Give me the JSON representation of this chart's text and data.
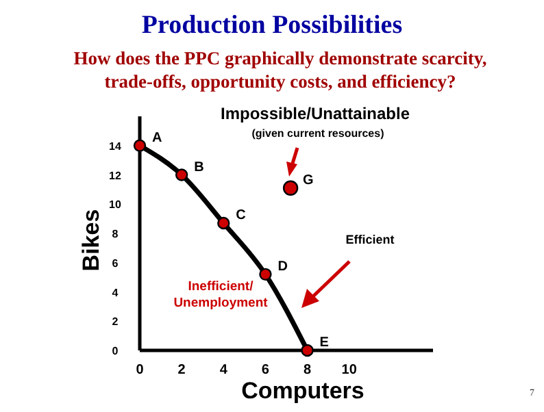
{
  "chart_data": {
    "type": "line",
    "title": "Production Possibilities",
    "subtitle": "How does the PPC graphically demonstrate scarcity, trade-offs, opportunity costs, and efficiency?",
    "xlabel": "Computers",
    "ylabel": "Bikes",
    "xlim": [
      0,
      14
    ],
    "ylim": [
      0,
      16
    ],
    "xticks": [
      0,
      2,
      4,
      6,
      8,
      10
    ],
    "yticks": [
      0,
      2,
      4,
      6,
      8,
      10,
      12,
      14
    ],
    "grid": false,
    "series": [
      {
        "color": "#000000",
        "marker": "none",
        "x": [
          0,
          2,
          4,
          6,
          8
        ],
        "values": [
          14,
          12,
          8.7,
          5.2,
          0
        ]
      },
      {
        "type": "scatter",
        "color": "#cc0000",
        "marker": "circle",
        "x": [
          0,
          2,
          4,
          6,
          8,
          7.2
        ],
        "values": [
          14,
          12,
          8.7,
          5.2,
          0,
          11.1
        ]
      }
    ],
    "annotations": [
      {
        "text": "A",
        "x": 0,
        "y": 14
      },
      {
        "text": "B",
        "x": 2,
        "y": 12
      },
      {
        "text": "C",
        "x": 4,
        "y": 8.7
      },
      {
        "text": "D",
        "x": 6,
        "y": 5.2
      },
      {
        "text": "E",
        "x": 8,
        "y": 0
      },
      {
        "text": "G",
        "x": 7.2,
        "y": 11.1
      },
      "Impossible/Unattainable",
      "(given current resources)",
      "Efficient",
      "Inefficient/ Unemployment",
      "7"
    ]
  }
}
